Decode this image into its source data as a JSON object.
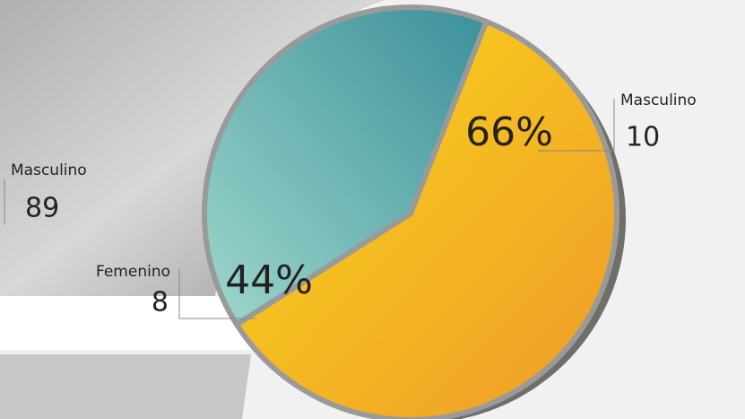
{
  "chart_data": {
    "type": "pie",
    "values": [
      66,
      44
    ],
    "value_labels": [
      "66%",
      "44%"
    ],
    "colors": [
      "#f6c21c",
      "#4a9fa8"
    ],
    "annotations": [
      {
        "label": "Masculino",
        "value": 10
      },
      {
        "label": "Femenino",
        "value": 8
      },
      {
        "label": "Masculino",
        "value": 89
      }
    ]
  }
}
